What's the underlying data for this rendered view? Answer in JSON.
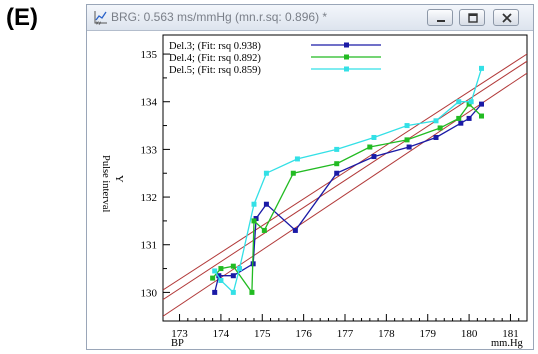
{
  "panel_label": "(E)",
  "window": {
    "title": "BRG: 0.563 ms/mmHg (mn.r.sq: 0.896) *",
    "icons": {
      "app": "xy-chart-icon",
      "minimize": "minimize-icon",
      "maximize": "maximize-icon",
      "close": "close-icon"
    }
  },
  "chart_data": {
    "type": "line",
    "ylabel_lines": [
      "Pulse interval",
      "Y"
    ],
    "xlabel_left": "BP",
    "xlabel_right": "mm.Hg",
    "xlim": [
      172.6,
      181.4
    ],
    "ylim": [
      129.4,
      135.4
    ],
    "x_ticks": [
      173,
      174,
      175,
      176,
      177,
      178,
      179,
      180,
      181
    ],
    "y_ticks": [
      130,
      131,
      132,
      133,
      134,
      135
    ],
    "series": [
      {
        "name": "Del.3; (Fit: rsq 0.938)",
        "color": "#1a1aa6",
        "points": [
          [
            173.85,
            130.0
          ],
          [
            173.95,
            130.35
          ],
          [
            174.3,
            130.35
          ],
          [
            174.78,
            130.6
          ],
          [
            174.85,
            131.55
          ],
          [
            175.1,
            131.85
          ],
          [
            175.8,
            131.3
          ],
          [
            176.8,
            132.5
          ],
          [
            177.7,
            132.85
          ],
          [
            178.55,
            133.05
          ],
          [
            179.2,
            133.25
          ],
          [
            179.8,
            133.55
          ],
          [
            180.0,
            133.65
          ],
          [
            180.3,
            133.95
          ]
        ]
      },
      {
        "name": "Del.4; (Fit: rsq 0.892)",
        "color": "#22bb22",
        "points": [
          [
            173.8,
            130.3
          ],
          [
            174.0,
            130.5
          ],
          [
            174.3,
            130.55
          ],
          [
            174.75,
            130.0
          ],
          [
            174.8,
            131.5
          ],
          [
            175.05,
            131.3
          ],
          [
            175.75,
            132.5
          ],
          [
            176.8,
            132.7
          ],
          [
            177.6,
            133.05
          ],
          [
            178.5,
            133.2
          ],
          [
            179.3,
            133.45
          ],
          [
            179.75,
            133.65
          ],
          [
            180.0,
            133.95
          ],
          [
            180.3,
            133.7
          ]
        ]
      },
      {
        "name": "Del.5; (Fit: rsq 0.859)",
        "color": "#33e0e6",
        "points": [
          [
            173.85,
            130.45
          ],
          [
            174.0,
            130.25
          ],
          [
            174.3,
            130.0
          ],
          [
            174.45,
            130.5
          ],
          [
            174.8,
            131.85
          ],
          [
            175.1,
            132.5
          ],
          [
            175.85,
            132.8
          ],
          [
            176.8,
            133.0
          ],
          [
            177.7,
            133.25
          ],
          [
            178.5,
            133.5
          ],
          [
            179.2,
            133.6
          ],
          [
            179.75,
            134.0
          ],
          [
            180.05,
            134.0
          ],
          [
            180.3,
            134.7
          ]
        ]
      }
    ],
    "fit_lines": [
      {
        "color": "#b23a3a",
        "x": [
          172.6,
          181.4
        ],
        "y": [
          130.05,
          135.0
        ]
      },
      {
        "color": "#b23a3a",
        "x": [
          172.6,
          181.4
        ],
        "y": [
          129.85,
          134.85
        ]
      },
      {
        "color": "#b23a3a",
        "x": [
          172.6,
          181.4
        ],
        "y": [
          129.5,
          134.6
        ]
      }
    ],
    "grid": false,
    "legend_position": "top-left"
  }
}
